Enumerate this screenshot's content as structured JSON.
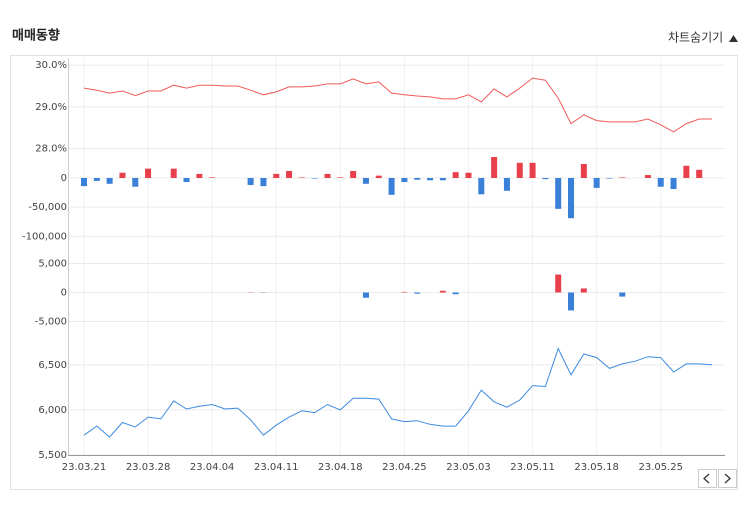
{
  "header": {
    "title": "매매동향",
    "toggle": "차트숨기기"
  },
  "chart_data": [
    {
      "type": "line",
      "color": "#f05a5a",
      "values": [
        29.45,
        29.4,
        29.33,
        29.38,
        29.27,
        29.38,
        29.38,
        29.52,
        29.45,
        29.52,
        29.52,
        29.5,
        29.5,
        29.4,
        29.29,
        29.36,
        29.48,
        29.48,
        29.5,
        29.55,
        29.55,
        29.67,
        29.55,
        29.6,
        29.33,
        29.29,
        29.26,
        29.24,
        29.19,
        29.19,
        29.29,
        29.12,
        29.43,
        29.24,
        29.45,
        29.69,
        29.64,
        29.21,
        28.6,
        28.81,
        28.67,
        28.64,
        28.64,
        28.64,
        28.71,
        28.57,
        28.4,
        28.6,
        28.71,
        28.71
      ],
      "ylim": [
        27.75,
        30.1
      ],
      "yticks": [
        {
          "value": 28,
          "label": "28.0%"
        },
        {
          "value": 29,
          "label": "29.0%"
        },
        {
          "value": 30,
          "label": "30.0%"
        }
      ],
      "grid": true
    },
    {
      "type": "bar",
      "colors": {
        "positive": "#e8404a",
        "negative": "#3a7fd8"
      },
      "values": [
        -14000,
        -5000,
        -10000,
        9000,
        -15000,
        16000,
        0,
        16000,
        -7000,
        7000,
        1000,
        0,
        0,
        -12000,
        -14000,
        7000,
        12000,
        1000,
        -1000,
        7000,
        1000,
        12000,
        -10000,
        4000,
        -29000,
        -7000,
        -3000,
        -4000,
        -4000,
        10000,
        9000,
        -28000,
        36000,
        -22000,
        26000,
        26000,
        -2000,
        -53000,
        -69000,
        24000,
        -17000,
        -1000,
        1000,
        0,
        5000,
        -15000,
        -19000,
        21000,
        14000,
        0
      ],
      "ylim": [
        -115000,
        48000
      ],
      "yticks": [
        {
          "value": -100000,
          "label": "-100,000"
        },
        {
          "value": -50000,
          "label": "-50,000"
        },
        0
      ],
      "grid": true
    },
    {
      "type": "bar",
      "colors": {
        "positive": "#e8404a",
        "negative": "#3a7fd8"
      },
      "values": [
        0,
        0,
        0,
        0,
        0,
        0,
        0,
        0,
        0,
        0,
        0,
        0,
        0,
        50,
        -50,
        0,
        0,
        0,
        0,
        0,
        0,
        0,
        -900,
        0,
        0,
        100,
        -200,
        0,
        300,
        -300,
        0,
        0,
        0,
        0,
        0,
        0,
        0,
        3100,
        -3100,
        700,
        0,
        0,
        -700,
        0,
        0,
        0,
        0,
        0,
        0,
        0
      ],
      "ylim": [
        -7500,
        7500
      ],
      "yticks": [
        {
          "value": -5000,
          "label": "-5,000"
        },
        0,
        {
          "value": 5000,
          "label": "5,000"
        }
      ],
      "grid": true
    },
    {
      "type": "line",
      "color": "#3d8be0",
      "categories": [
        "23.03.21",
        null,
        null,
        null,
        null,
        "23.03.28",
        null,
        null,
        null,
        null,
        "23.04.04",
        null,
        null,
        null,
        null,
        "23.04.11",
        null,
        null,
        null,
        null,
        "23.04.18",
        null,
        null,
        null,
        null,
        "23.04.25",
        null,
        null,
        null,
        null,
        "23.05.03",
        null,
        null,
        null,
        null,
        "23.05.11",
        null,
        null,
        null,
        null,
        "23.05.18",
        null,
        null,
        null,
        null,
        "23.05.25",
        null,
        null,
        null,
        null
      ],
      "values": [
        5720,
        5820,
        5700,
        5860,
        5810,
        5920,
        5900,
        6100,
        6010,
        6040,
        6060,
        6010,
        6020,
        5890,
        5720,
        5830,
        5920,
        5990,
        5970,
        6060,
        6000,
        6130,
        6130,
        6120,
        5900,
        5870,
        5880,
        5840,
        5820,
        5820,
        5990,
        6220,
        6090,
        6030,
        6110,
        6270,
        6260,
        6680,
        6390,
        6620,
        6580,
        6460,
        6510,
        6540,
        6590,
        6580,
        6420,
        6510,
        6510,
        6500
      ],
      "ylim": [
        5500,
        6720
      ],
      "yticks": [
        {
          "value": 5500,
          "label": "5,500"
        },
        {
          "value": 6000,
          "label": "6,000"
        },
        {
          "value": 6500,
          "label": "6,500"
        }
      ],
      "grid": true
    }
  ]
}
